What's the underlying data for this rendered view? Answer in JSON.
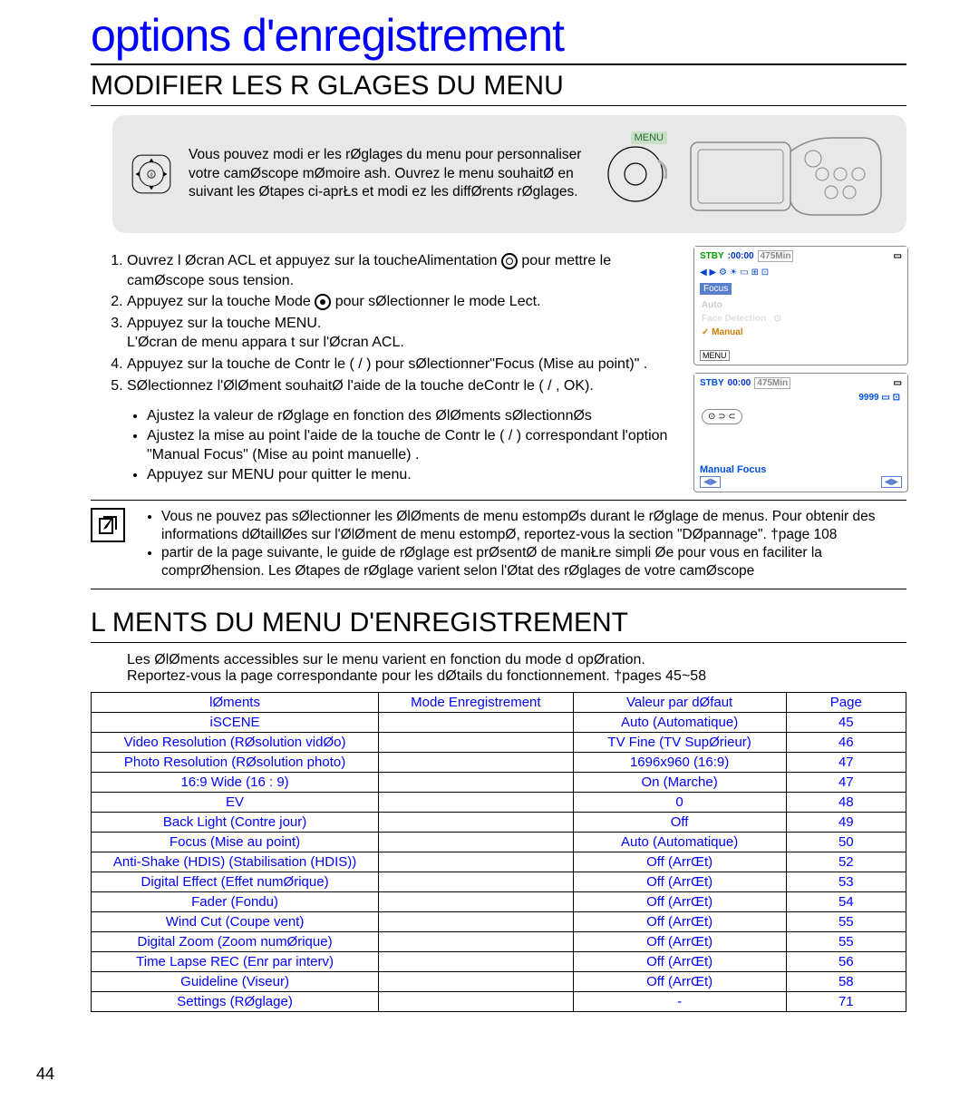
{
  "page": {
    "title": "options d'enregistrement",
    "section1": "MODIFIER LES R GLAGES DU MENU",
    "section2": "L MENTS DU MENU D'ENREGISTREMENT",
    "pageNumber": "44"
  },
  "intro": {
    "text": "Vous pouvez modi er les rØglages du menu pour personnaliser votre camØscope  mØmoire  ash. Ouvrez le menu souhaitØ en suivant les Øtapes ci-aprŁs et modi ez les diffØrents rØglages.",
    "menuLabel": "MENU"
  },
  "steps": {
    "s1a": "Ouvrez l Øcran ACL et appuyez sur la toucheAlimentation ",
    "s1b": " pour mettre le camØscope sous tension.",
    "s2a": "Appuyez sur la touche Mode ",
    "s2b": " pour sØlectionner le mode Lect.",
    "s3": "Appuyez sur la touche MENU.",
    "s3sub": "L'Øcran de menu appara t sur l'Øcran ACL.",
    "s4": "Appuyez sur la touche de Contr le (      /      ) pour sØlectionner\"Focus (Mise au point)\" .",
    "s5": "SØlectionnez l'ØlØment souhaitØ   l'aide de la touche deContr le (      /      , OK).",
    "b1": "Ajustez la valeur de rØglage en fonction des ØlØments sØlectionnØs",
    "b2": "Ajustez la mise au point   l'aide de la touche de  Contr le (      /      ) correspondant   l'option  \"Manual Focus\" (Mise au point manuelle)   .",
    "b3": "Appuyez sur MENU pour quitter le menu."
  },
  "notes": {
    "n1": "Vous ne pouvez pas sØlectionner les ØlØments de menu estompØs durant le rØglage de menus. Pour obtenir des informations dØtaillØes sur l'ØlØment de menu estompØ, reportez-vous   la section \"DØpannage\". †page 108",
    "n2": "  partir de la page suivante, le guide de rØglage est prØsentØ de maniŁre simpli Øe pour vous en faciliter la comprØhension. Les Øtapes de rØglage varient selon l'Øtat des rØglages de votre camØscope"
  },
  "desc": {
    "l1": "Les ØlØments accessibles sur le menu varient en fonction du mode d opØration.",
    "l2": "Reportez-vous   la page correspondante pour les dØtails du fonctionnement. †pages 45~58"
  },
  "screens": {
    "s1": {
      "stby": "STBY",
      "time": ":00:00",
      "rem": "475Min",
      "focus": "Focus",
      "menu": "MENU",
      "manual": "Manual"
    },
    "s2": {
      "stby": "STBY",
      "time": "00:00",
      "rem": "475Min",
      "count": "9999",
      "mf": "Manual Focus"
    }
  },
  "table": {
    "headers": [
      "lØments",
      "Mode Enregistrement",
      "Valeur par dØfaut",
      "Page"
    ],
    "rows": [
      [
        "iSCENE",
        "",
        "Auto (Automatique)",
        "45"
      ],
      [
        "Video Resolution (RØsolution vidØo)",
        "",
        "TV Fine (TV SupØrieur)",
        "46"
      ],
      [
        "Photo Resolution (RØsolution photo)",
        "",
        "1696x960 (16:9)",
        "47"
      ],
      [
        "16:9 Wide (16 : 9)",
        "",
        "On (Marche)",
        "47"
      ],
      [
        "EV",
        "",
        "0",
        "48"
      ],
      [
        "Back Light (Contre jour)",
        "",
        "Off",
        "49"
      ],
      [
        "Focus (Mise au point)",
        "",
        "Auto (Automatique)",
        "50"
      ],
      [
        "Anti-Shake (HDIS) (Stabilisation (HDIS))",
        "",
        "Off (ArrŒt)",
        "52"
      ],
      [
        "Digital Effect (Effet numØrique)",
        "",
        "Off (ArrŒt)",
        "53"
      ],
      [
        "Fader (Fondu)",
        "",
        "Off (ArrŒt)",
        "54"
      ],
      [
        "Wind Cut (Coupe vent)",
        "",
        "Off (ArrŒt)",
        "55"
      ],
      [
        "Digital Zoom (Zoom numØrique)",
        "",
        "Off (ArrŒt)",
        "55"
      ],
      [
        "Time Lapse REC (Enr par interv)",
        "",
        "Off (ArrŒt)",
        "56"
      ],
      [
        "Guideline (Viseur)",
        "",
        "Off (ArrŒt)",
        "58"
      ],
      [
        "Settings (RØglage)",
        "",
        "-",
        "71"
      ]
    ],
    "colWidths": [
      "300px",
      "200px",
      "220px",
      "120px"
    ]
  },
  "colors": {
    "titleColor": "#0000ff",
    "tableText": "#0000ff",
    "introBg": "#e8e8e8"
  }
}
